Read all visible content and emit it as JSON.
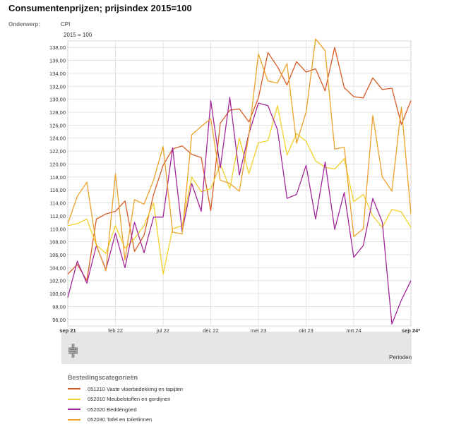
{
  "header": {
    "title": "Consumentenprijzen; prijsindex 2015=100",
    "subject_label": "Onderwerp:",
    "subject_value": "CPI",
    "unit": "2015 = 100"
  },
  "footer": {
    "periods_label": "Perioden",
    "legend_title": "Bestedingscategorieën"
  },
  "chart_data": {
    "type": "line",
    "x": [
      "sep 21",
      "okt 21",
      "nov 21",
      "dec 21",
      "jan 22",
      "feb 22",
      "mrt 22",
      "apr 22",
      "mei 22",
      "jun 22",
      "jul 22",
      "aug 22",
      "sep 22",
      "okt 22",
      "nov 22",
      "dec 22",
      "jan 23",
      "feb 23",
      "mrt 23",
      "apr 23",
      "mei 23",
      "jun 23",
      "jul 23",
      "aug 23",
      "sep 23",
      "okt 23",
      "nov 23",
      "dec 23",
      "jan 24",
      "feb 24",
      "mrt 24",
      "apr 24",
      "mei 24",
      "jun 24",
      "jul 24",
      "aug 24",
      "sep 24*"
    ],
    "x_tick_labels": [
      "sep 21",
      "feb 22",
      "jul 22",
      "dec 22",
      "mei 23",
      "okt 23",
      "mrt 24",
      "sep 24*"
    ],
    "x_tick_indices": [
      0,
      5,
      10,
      15,
      20,
      25,
      30,
      36
    ],
    "bold_tick_labels": [
      "sep 21",
      "sep 24*"
    ],
    "ylim": [
      95,
      139
    ],
    "y_ticks": [
      "96,00",
      "98,00",
      "100,00",
      "102,00",
      "104,00",
      "106,00",
      "108,00",
      "110,00",
      "112,00",
      "114,00",
      "116,00",
      "118,00",
      "120,00",
      "122,00",
      "124,00",
      "126,00",
      "128,00",
      "130,00",
      "132,00",
      "134,00",
      "136,00",
      "138,00"
    ],
    "y_tick_values": [
      96,
      98,
      100,
      102,
      104,
      106,
      108,
      110,
      112,
      114,
      116,
      118,
      120,
      122,
      124,
      126,
      128,
      130,
      132,
      134,
      136,
      138
    ],
    "grid": true,
    "legend_position": "bottom",
    "series": [
      {
        "name": "051210 Vaste vloerbedekking en tapijten",
        "color": "#d95b26",
        "values": [
          103.0,
          104.5,
          102.0,
          111.5,
          112.3,
          112.7,
          114.3,
          106.5,
          109.0,
          115.3,
          119.8,
          122.3,
          122.8,
          121.5,
          121.0,
          112.8,
          126.3,
          128.3,
          128.5,
          126.5,
          130.2,
          137.2,
          135.0,
          132.2,
          135.8,
          134.2,
          134.7,
          131.3,
          138.0,
          131.8,
          130.4,
          130.2,
          133.3,
          131.5,
          131.7,
          126.1,
          129.8
        ]
      },
      {
        "name": "052010 Meubelstoffen en gordijnen",
        "color": "#f2d02c",
        "values": [
          110.5,
          110.8,
          111.5,
          107.5,
          106.2,
          110.5,
          107.0,
          108.5,
          110.5,
          114.0,
          103.0,
          110.0,
          110.5,
          118.0,
          115.7,
          116.2,
          120.0,
          116.2,
          124.0,
          118.5,
          123.3,
          123.6,
          129.0,
          121.4,
          124.7,
          123.5,
          120.5,
          119.5,
          119.2,
          120.8,
          114.2,
          115.3,
          112.0,
          110.2,
          113.0,
          112.6,
          110.2
        ]
      },
      {
        "name": "052020 Beddengoed",
        "color": "#a3279a",
        "values": [
          99.4,
          105.0,
          101.6,
          107.4,
          103.7,
          109.3,
          104.0,
          111.0,
          106.3,
          111.8,
          111.8,
          122.5,
          109.6,
          117.0,
          112.7,
          129.8,
          119.4,
          130.3,
          118.3,
          124.7,
          129.4,
          129.0,
          125.3,
          114.7,
          115.3,
          119.8,
          111.5,
          120.3,
          109.9,
          115.6,
          105.6,
          107.4,
          114.7,
          111.0,
          95.3,
          99.0,
          102.0
        ]
      },
      {
        "name": "052030 Tafel en toiletlinnen",
        "color": "#eda12a",
        "values": [
          110.8,
          115.0,
          117.2,
          107.5,
          103.5,
          118.5,
          105.2,
          114.5,
          113.8,
          117.5,
          122.7,
          109.5,
          109.2,
          124.5,
          125.8,
          127.0,
          117.5,
          117.0,
          115.8,
          124.5,
          137.0,
          132.8,
          132.5,
          135.5,
          123.2,
          128.0,
          139.3,
          137.5,
          122.3,
          122.6,
          108.8,
          110.0,
          127.5,
          118.0,
          115.8,
          128.8,
          112.3
        ]
      }
    ]
  }
}
